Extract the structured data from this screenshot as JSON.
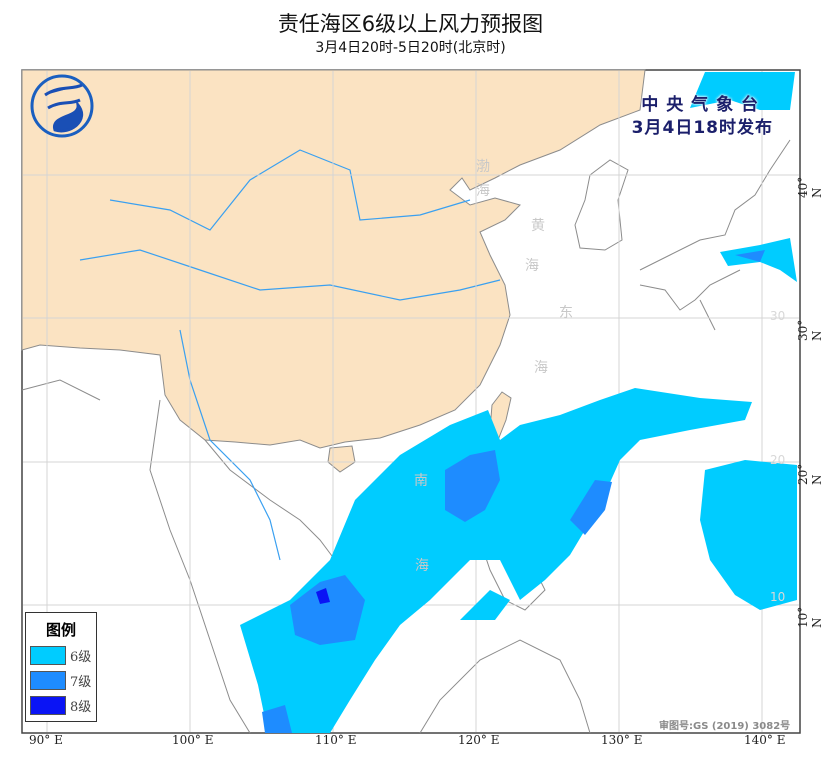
{
  "header": {
    "title": "责任海区6级以上风力预报图",
    "subtitle": "3月4日20时-5日20时(北京时)"
  },
  "issuer": {
    "line1": "中 央 气 象 台",
    "line2": "3月4日18时发布"
  },
  "logo": {
    "name": "cma-logo",
    "text": "中国气象局"
  },
  "legend": {
    "title": "图例",
    "items": [
      {
        "label": "6级",
        "color": "#00ccff"
      },
      {
        "label": "7级",
        "color": "#1e8cff"
      },
      {
        "label": "8级",
        "color": "#0a14f5"
      }
    ]
  },
  "axes": {
    "lon_labels": [
      "90° E",
      "100° E",
      "110° E",
      "120° E",
      "130° E",
      "140° E"
    ],
    "lat_labels": [
      "40° N",
      "30° N",
      "20° N",
      "10° N"
    ],
    "grid_numbers": [
      "30",
      "20",
      "10"
    ]
  },
  "sea_labels": {
    "bohai": [
      "渤",
      "海"
    ],
    "yellow": [
      "黄",
      "海"
    ],
    "east": [
      "东",
      "海"
    ],
    "south": [
      "南",
      "海"
    ]
  },
  "map_review_number": "审图号:GS (2019) 3082号",
  "colors": {
    "china_land": "#fbe3c2",
    "other_land": "#ffffff",
    "border": "#8c8c8c",
    "river": "#3aa0f0",
    "grid": "#d4d4d4"
  }
}
